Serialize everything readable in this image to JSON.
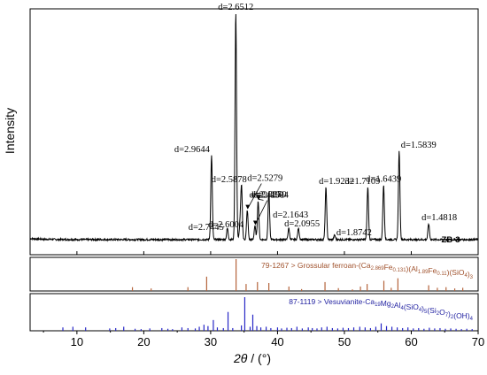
{
  "chart_data": {
    "type": "line",
    "title": "",
    "xlabel_main": "2θ",
    "xlabel_unit": " / (°)",
    "ylabel": "Intensity",
    "xlim": [
      3,
      70
    ],
    "xticks": [
      10,
      20,
      30,
      40,
      50,
      60,
      70
    ],
    "sample_label": "ZB-3",
    "colors": {
      "pattern": "#000000",
      "reference_1": "#b5643c",
      "reference_2": "#2626c6",
      "reference_1_text": "#a0522d",
      "reference_2_text": "#1f1fa0"
    },
    "pattern": {
      "name": "ZB-3",
      "baseline": 0.02,
      "peaks": [
        {
          "x": 30.13,
          "y": 0.37,
          "label": "d=2.9644"
        },
        {
          "x": 32.5,
          "y": 0.05,
          "label": "d=2.7445"
        },
        {
          "x": 33.76,
          "y": 1.0,
          "label": "d=2.6512"
        },
        {
          "x": 34.4,
          "y": 0.07,
          "label": "d=2.6004"
        },
        {
          "x": 34.62,
          "y": 0.23,
          "label": "d=2.5878"
        },
        {
          "x": 35.48,
          "y": 0.13,
          "label": "d=2.5279"
        },
        {
          "x": 36.62,
          "y": 0.06,
          "label": "d=2.4504"
        },
        {
          "x": 37.1,
          "y": 0.17,
          "label": "d=2.4201"
        },
        {
          "x": 38.7,
          "y": 0.21,
          "label": "d=2.3250"
        },
        {
          "x": 41.68,
          "y": 0.05,
          "label": "d=2.1643"
        },
        {
          "x": 43.13,
          "y": 0.05,
          "label": "d=2.0955"
        },
        {
          "x": 47.24,
          "y": 0.23,
          "label": "d=1.9232"
        },
        {
          "x": 48.54,
          "y": 0.02,
          "label": "d=1.8742"
        },
        {
          "x": 53.5,
          "y": 0.23,
          "label": "d=1.7109"
        },
        {
          "x": 55.86,
          "y": 0.24,
          "label": "d=1.6439"
        },
        {
          "x": 58.19,
          "y": 0.39,
          "label": "d=1.5839"
        },
        {
          "x": 62.6,
          "y": 0.07,
          "label": "d=1.4818"
        }
      ]
    },
    "reference_1": {
      "label_prefix": "79-1267 > Grossular ferroan-(Ca",
      "label_parts": [
        {
          "t": "79-1267 > Grossular ferroan-(Ca",
          "sub": false
        },
        {
          "t": "2.869",
          "sub": true
        },
        {
          "t": "Fe",
          "sub": false
        },
        {
          "t": "0.131",
          "sub": true
        },
        {
          "t": ")(Al",
          "sub": false
        },
        {
          "t": "1.89",
          "sub": true
        },
        {
          "t": "Fe",
          "sub": false
        },
        {
          "t": "0.11",
          "sub": true
        },
        {
          "t": ")(SiO",
          "sub": false
        },
        {
          "t": "4",
          "sub": true
        },
        {
          "t": ")",
          "sub": false
        },
        {
          "t": "3",
          "sub": true
        }
      ],
      "lines": [
        {
          "x": 18.3,
          "h": 0.12
        },
        {
          "x": 21.1,
          "h": 0.08
        },
        {
          "x": 26.6,
          "h": 0.12
        },
        {
          "x": 29.4,
          "h": 0.45
        },
        {
          "x": 33.8,
          "h": 1.0
        },
        {
          "x": 35.3,
          "h": 0.22
        },
        {
          "x": 37.0,
          "h": 0.28
        },
        {
          "x": 38.7,
          "h": 0.25
        },
        {
          "x": 41.7,
          "h": 0.14
        },
        {
          "x": 43.6,
          "h": 0.06
        },
        {
          "x": 47.1,
          "h": 0.28
        },
        {
          "x": 49.1,
          "h": 0.09
        },
        {
          "x": 51.2,
          "h": 0.05
        },
        {
          "x": 52.4,
          "h": 0.14
        },
        {
          "x": 53.4,
          "h": 0.22
        },
        {
          "x": 55.9,
          "h": 0.32
        },
        {
          "x": 57.0,
          "h": 0.1
        },
        {
          "x": 58.0,
          "h": 0.4
        },
        {
          "x": 62.6,
          "h": 0.18
        },
        {
          "x": 63.9,
          "h": 0.1
        },
        {
          "x": 65.2,
          "h": 0.12
        },
        {
          "x": 66.5,
          "h": 0.08
        },
        {
          "x": 67.7,
          "h": 0.1
        }
      ]
    },
    "reference_2": {
      "label_parts": [
        {
          "t": "87-1119 > Vesuvianite-Ca",
          "sub": false
        },
        {
          "t": "19",
          "sub": true
        },
        {
          "t": "Mg",
          "sub": false
        },
        {
          "t": "2",
          "sub": true
        },
        {
          "t": "Al",
          "sub": false
        },
        {
          "t": "4",
          "sub": true
        },
        {
          "t": "(SiO",
          "sub": false
        },
        {
          "t": "4",
          "sub": true
        },
        {
          "t": ")",
          "sub": false
        },
        {
          "t": "5",
          "sub": true
        },
        {
          "t": "(Si",
          "sub": false
        },
        {
          "t": "2",
          "sub": true
        },
        {
          "t": "O",
          "sub": false
        },
        {
          "t": "7",
          "sub": true
        },
        {
          "t": ")",
          "sub": false
        },
        {
          "t": "2",
          "sub": true
        },
        {
          "t": "(OH)",
          "sub": false
        },
        {
          "t": "4",
          "sub": true
        }
      ],
      "lines": [
        {
          "x": 7.9,
          "h": 0.1
        },
        {
          "x": 9.4,
          "h": 0.12
        },
        {
          "x": 11.3,
          "h": 0.1
        },
        {
          "x": 14.9,
          "h": 0.07
        },
        {
          "x": 15.8,
          "h": 0.08
        },
        {
          "x": 17.0,
          "h": 0.12
        },
        {
          "x": 18.7,
          "h": 0.06
        },
        {
          "x": 19.6,
          "h": 0.05
        },
        {
          "x": 20.9,
          "h": 0.07
        },
        {
          "x": 22.7,
          "h": 0.08
        },
        {
          "x": 23.6,
          "h": 0.06
        },
        {
          "x": 24.3,
          "h": 0.05
        },
        {
          "x": 25.7,
          "h": 0.1
        },
        {
          "x": 26.6,
          "h": 0.08
        },
        {
          "x": 27.7,
          "h": 0.07
        },
        {
          "x": 28.3,
          "h": 0.12
        },
        {
          "x": 29.0,
          "h": 0.18
        },
        {
          "x": 29.6,
          "h": 0.14
        },
        {
          "x": 30.4,
          "h": 0.32
        },
        {
          "x": 31.0,
          "h": 0.1
        },
        {
          "x": 31.9,
          "h": 0.08
        },
        {
          "x": 32.6,
          "h": 0.56
        },
        {
          "x": 33.3,
          "h": 0.08
        },
        {
          "x": 34.6,
          "h": 0.16
        },
        {
          "x": 35.1,
          "h": 1.0
        },
        {
          "x": 35.9,
          "h": 0.12
        },
        {
          "x": 36.3,
          "h": 0.48
        },
        {
          "x": 36.9,
          "h": 0.14
        },
        {
          "x": 37.5,
          "h": 0.1
        },
        {
          "x": 38.3,
          "h": 0.12
        },
        {
          "x": 39.0,
          "h": 0.08
        },
        {
          "x": 40.0,
          "h": 0.1
        },
        {
          "x": 40.6,
          "h": 0.07
        },
        {
          "x": 41.4,
          "h": 0.09
        },
        {
          "x": 42.1,
          "h": 0.08
        },
        {
          "x": 42.9,
          "h": 0.12
        },
        {
          "x": 43.7,
          "h": 0.07
        },
        {
          "x": 44.6,
          "h": 0.1
        },
        {
          "x": 45.2,
          "h": 0.08
        },
        {
          "x": 45.9,
          "h": 0.07
        },
        {
          "x": 46.6,
          "h": 0.1
        },
        {
          "x": 47.4,
          "h": 0.12
        },
        {
          "x": 48.2,
          "h": 0.08
        },
        {
          "x": 49.0,
          "h": 0.07
        },
        {
          "x": 49.8,
          "h": 0.09
        },
        {
          "x": 50.6,
          "h": 0.08
        },
        {
          "x": 51.4,
          "h": 0.1
        },
        {
          "x": 52.3,
          "h": 0.12
        },
        {
          "x": 53.1,
          "h": 0.1
        },
        {
          "x": 53.9,
          "h": 0.08
        },
        {
          "x": 54.7,
          "h": 0.12
        },
        {
          "x": 55.5,
          "h": 0.22
        },
        {
          "x": 56.3,
          "h": 0.14
        },
        {
          "x": 57.1,
          "h": 0.12
        },
        {
          "x": 57.9,
          "h": 0.1
        },
        {
          "x": 58.7,
          "h": 0.08
        },
        {
          "x": 59.5,
          "h": 0.1
        },
        {
          "x": 60.3,
          "h": 0.07
        },
        {
          "x": 61.1,
          "h": 0.08
        },
        {
          "x": 61.9,
          "h": 0.06
        },
        {
          "x": 62.7,
          "h": 0.09
        },
        {
          "x": 63.5,
          "h": 0.07
        },
        {
          "x": 64.3,
          "h": 0.08
        },
        {
          "x": 65.1,
          "h": 0.06
        },
        {
          "x": 65.9,
          "h": 0.07
        },
        {
          "x": 66.7,
          "h": 0.06
        },
        {
          "x": 67.5,
          "h": 0.05
        },
        {
          "x": 68.3,
          "h": 0.06
        },
        {
          "x": 69.1,
          "h": 0.05
        }
      ]
    },
    "arrows": [
      "d=2.5279",
      "d=2.4504",
      "d=2.4201"
    ]
  }
}
